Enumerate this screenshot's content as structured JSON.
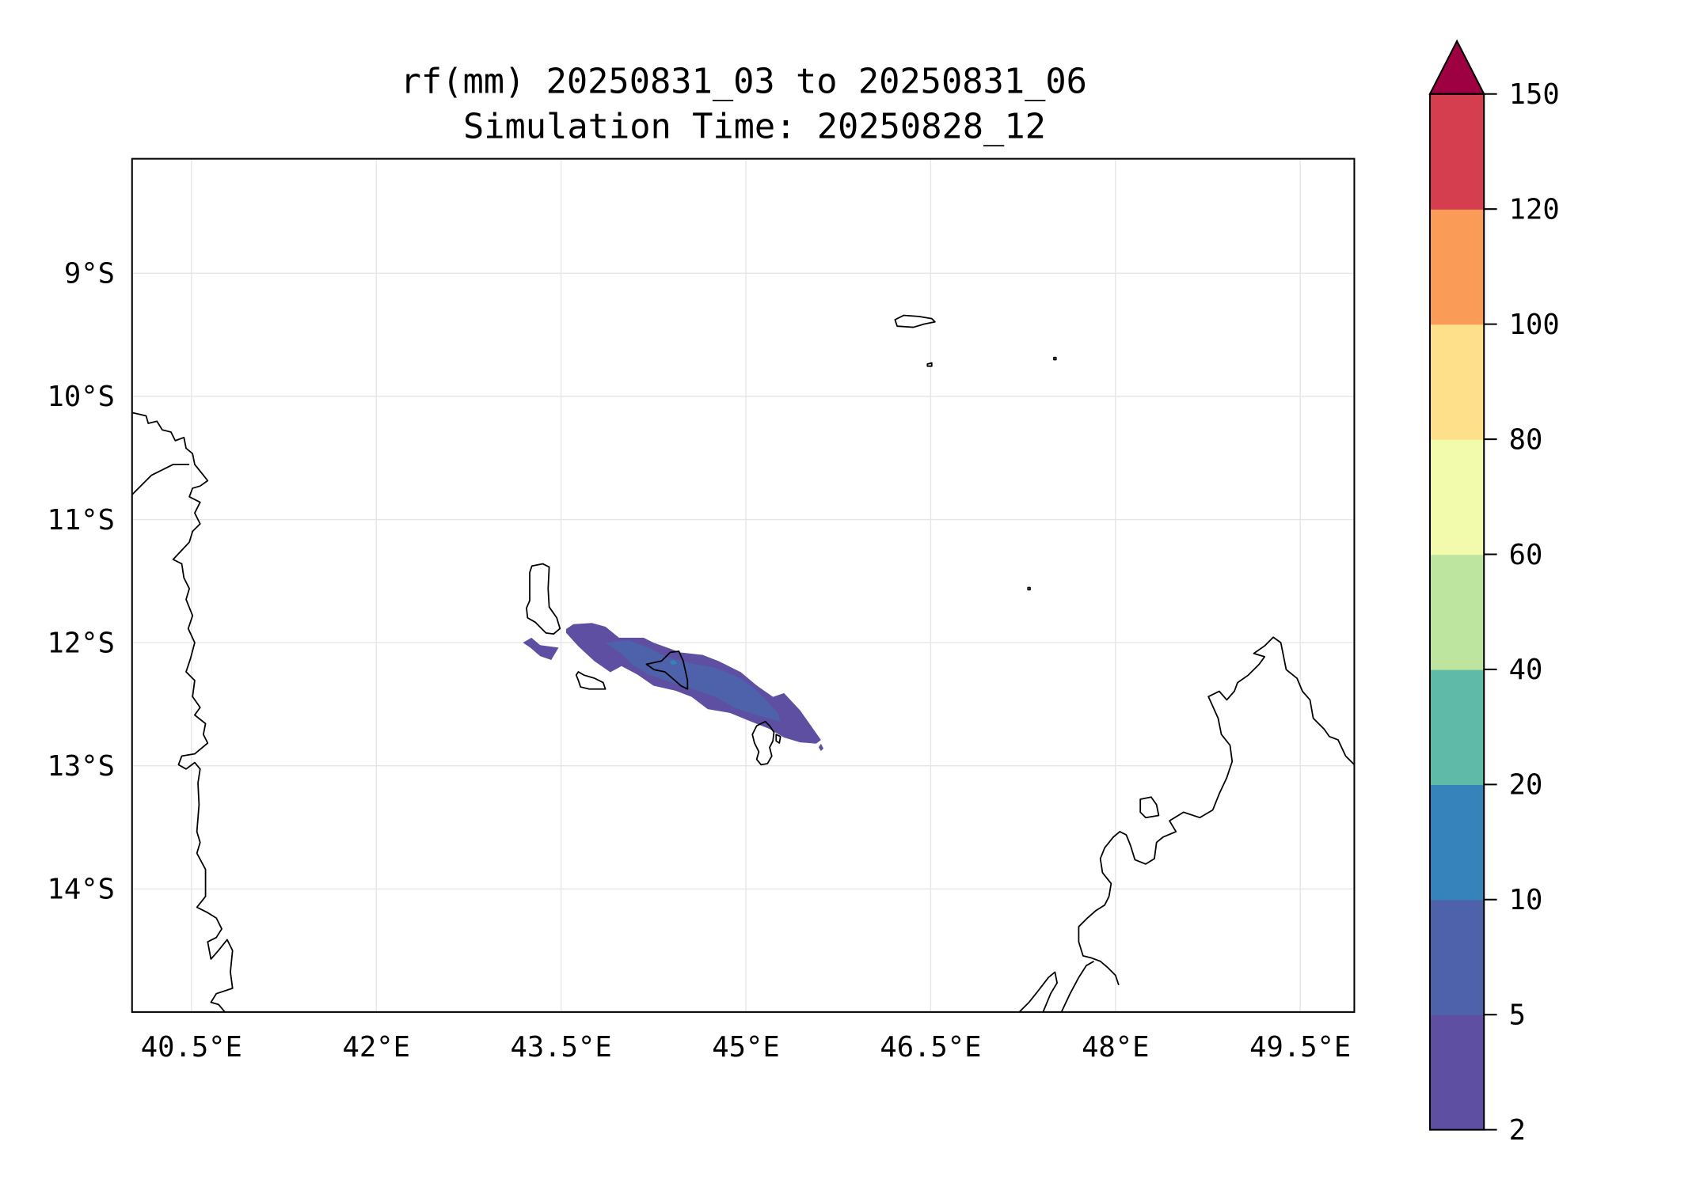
{
  "chart_data": {
    "type": "contourf-map",
    "title": "rf(mm) 20250831_03 to 20250831_06",
    "subtitle": "Simulation Time: 20250828_12",
    "xlabel": "",
    "ylabel": "",
    "xlim": [
      40.0,
      49.93
    ],
    "ylim": [
      -15.0,
      -8.07
    ],
    "grid": true,
    "x_ticks": [
      {
        "value": 40.5,
        "label": "40.5°E"
      },
      {
        "value": 42,
        "label": "42°E"
      },
      {
        "value": 43.5,
        "label": "43.5°E"
      },
      {
        "value": 45,
        "label": "45°E"
      },
      {
        "value": 46.5,
        "label": "46.5°E"
      },
      {
        "value": 48,
        "label": "48°E"
      },
      {
        "value": 49.5,
        "label": "49.5°E"
      }
    ],
    "y_ticks": [
      {
        "value": -9,
        "label": "9°S"
      },
      {
        "value": -10,
        "label": "10°S"
      },
      {
        "value": -11,
        "label": "11°S"
      },
      {
        "value": -12,
        "label": "12°S"
      },
      {
        "value": -13,
        "label": "13°S"
      },
      {
        "value": -14,
        "label": "14°S"
      }
    ],
    "colorbar": {
      "levels": [
        2,
        5,
        10,
        20,
        40,
        60,
        80,
        100,
        120,
        150
      ],
      "labels": [
        "2",
        "5",
        "10",
        "20",
        "40",
        "60",
        "80",
        "100",
        "120",
        "150"
      ],
      "colors": [
        "#5e4fa2",
        "#4e62ab",
        "#3682ba",
        "#5fbaa8",
        "#bee5a0",
        "#f2faac",
        "#fee08b",
        "#fa9c58",
        "#d53e4f"
      ],
      "extend_max_color": "#9e0142",
      "placement": "right"
    },
    "rain_regions": [
      {
        "range": "2-5",
        "color": "#5e4fa2",
        "lonlat": [
          [
            43.54,
            -11.89
          ],
          [
            43.6,
            -11.85
          ],
          [
            43.75,
            -11.84
          ],
          [
            43.86,
            -11.87
          ],
          [
            43.97,
            -11.96
          ],
          [
            44.17,
            -11.96
          ],
          [
            44.25,
            -12.0
          ],
          [
            44.47,
            -12.08
          ],
          [
            44.65,
            -12.1
          ],
          [
            44.78,
            -12.15
          ],
          [
            44.96,
            -12.24
          ],
          [
            45.09,
            -12.35
          ],
          [
            45.22,
            -12.44
          ],
          [
            45.31,
            -12.41
          ],
          [
            45.44,
            -12.55
          ],
          [
            45.61,
            -12.79
          ],
          [
            45.57,
            -12.82
          ],
          [
            45.44,
            -12.81
          ],
          [
            45.31,
            -12.77
          ],
          [
            45.19,
            -12.7
          ],
          [
            45.04,
            -12.64
          ],
          [
            44.87,
            -12.57
          ],
          [
            44.69,
            -12.54
          ],
          [
            44.56,
            -12.44
          ],
          [
            44.43,
            -12.39
          ],
          [
            44.25,
            -12.35
          ],
          [
            44.12,
            -12.26
          ],
          [
            43.99,
            -12.19
          ],
          [
            43.9,
            -12.24
          ],
          [
            43.77,
            -12.15
          ],
          [
            43.64,
            -12.03
          ],
          [
            43.54,
            -11.92
          ]
        ]
      },
      {
        "range": "2-5",
        "color": "#5e4fa2",
        "lonlat": [
          [
            43.19,
            -12.0
          ],
          [
            43.26,
            -11.96
          ],
          [
            43.33,
            -12.02
          ],
          [
            43.48,
            -12.04
          ],
          [
            43.42,
            -12.14
          ],
          [
            43.33,
            -12.11
          ],
          [
            43.25,
            -12.04
          ]
        ]
      },
      {
        "range": "2-5",
        "color": "#5e4fa2",
        "lonlat": [
          [
            45.61,
            -12.82
          ],
          [
            45.63,
            -12.86
          ],
          [
            45.61,
            -12.88
          ],
          [
            45.59,
            -12.85
          ]
        ]
      },
      {
        "range": "5-10",
        "color": "#4e62ab",
        "lonlat": [
          [
            43.86,
            -12.0
          ],
          [
            44.04,
            -11.98
          ],
          [
            44.21,
            -12.04
          ],
          [
            44.34,
            -12.11
          ],
          [
            44.56,
            -12.17
          ],
          [
            44.74,
            -12.2
          ],
          [
            44.96,
            -12.29
          ],
          [
            45.09,
            -12.39
          ],
          [
            45.26,
            -12.57
          ],
          [
            45.28,
            -12.64
          ],
          [
            45.09,
            -12.59
          ],
          [
            44.91,
            -12.53
          ],
          [
            44.75,
            -12.44
          ],
          [
            44.61,
            -12.39
          ],
          [
            44.39,
            -12.32
          ],
          [
            44.21,
            -12.26
          ],
          [
            44.08,
            -12.18
          ],
          [
            43.99,
            -12.09
          ]
        ]
      },
      {
        "range": "10-20",
        "color": "#3682ba",
        "lonlat": [
          [
            44.38,
            -12.15
          ],
          [
            44.42,
            -12.14
          ],
          [
            44.44,
            -12.17
          ],
          [
            44.4,
            -12.18
          ]
        ]
      }
    ]
  }
}
